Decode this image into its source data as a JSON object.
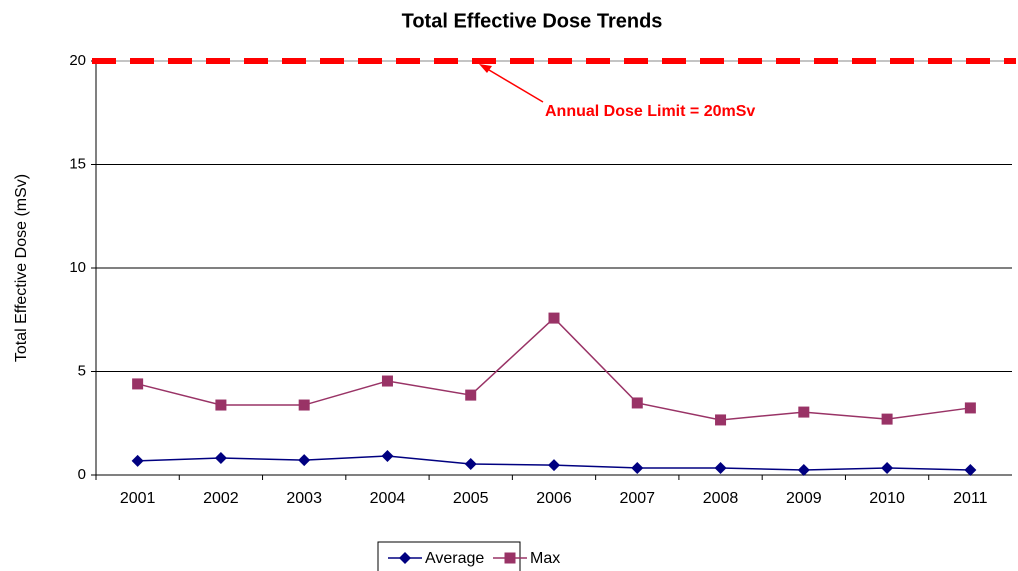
{
  "chart_data": {
    "type": "line",
    "title": "Total Effective Dose Trends",
    "y_label": "Total Effective Dose (mSv)",
    "categories": [
      "2001",
      "2002",
      "2003",
      "2004",
      "2005",
      "2006",
      "2007",
      "2008",
      "2009",
      "2010",
      "2011"
    ],
    "series": [
      {
        "name": "Average",
        "color": "#000080",
        "marker": "diamond",
        "values": [
          0.68,
          0.82,
          0.72,
          0.92,
          0.53,
          0.48,
          0.34,
          0.34,
          0.24,
          0.34,
          0.24
        ]
      },
      {
        "name": "Max",
        "color": "#993366",
        "marker": "square",
        "values": [
          4.4,
          3.38,
          3.38,
          4.54,
          3.86,
          7.58,
          3.48,
          2.66,
          3.04,
          2.7,
          3.24
        ]
      }
    ],
    "ylim": [
      0,
      20
    ],
    "yticks": [
      0,
      5,
      10,
      15,
      20
    ],
    "grid": true,
    "legend": "bottom",
    "reference_line": {
      "value": 20,
      "color": "#ff0000"
    },
    "annotation": "Annual Dose Limit = 20mSv"
  }
}
